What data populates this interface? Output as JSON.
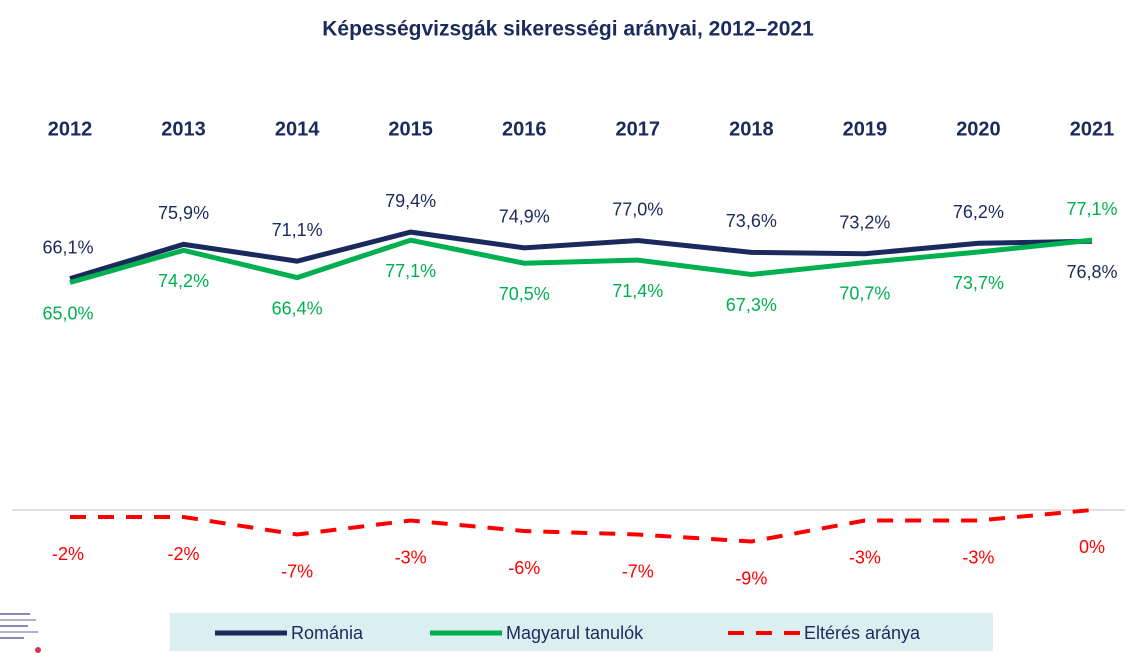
{
  "chart_data": {
    "type": "line",
    "title": "Képességvizsgák sikerességi arányai, 2012–2021",
    "categories": [
      "2012",
      "2013",
      "2014",
      "2015",
      "2016",
      "2017",
      "2018",
      "2019",
      "2020",
      "2021"
    ],
    "ylim": [
      -12,
      100
    ],
    "legend": "bottom",
    "series": [
      {
        "name": "Románia",
        "color": "#1b2a5c",
        "dash": false,
        "values": [
          66.1,
          75.9,
          71.1,
          79.4,
          74.9,
          77.0,
          73.6,
          73.2,
          76.2,
          76.8
        ],
        "value_labels": [
          "66,1%",
          "75,9%",
          "71,1%",
          "79,4%",
          "74,9%",
          "77,0%",
          "73,6%",
          "73,2%",
          "76,2%",
          "76,8%"
        ]
      },
      {
        "name": "Magyarul tanulók",
        "color": "#00b050",
        "dash": false,
        "values": [
          65.0,
          74.2,
          66.4,
          77.1,
          70.5,
          71.4,
          67.3,
          70.7,
          73.7,
          77.1
        ],
        "value_labels": [
          "65,0%",
          "74,2%",
          "66,4%",
          "77,1%",
          "70,5%",
          "71,4%",
          "67,3%",
          "70,7%",
          "73,7%",
          "77,1%"
        ]
      },
      {
        "name": "Eltérés aránya",
        "color": "#ff0000",
        "dash": true,
        "values": [
          -2,
          -2,
          -7,
          -3,
          -6,
          -7,
          -9,
          -3,
          -3,
          0
        ],
        "value_labels": [
          "-2%",
          "-2%",
          "-7%",
          "-3%",
          "-6%",
          "-7%",
          "-9%",
          "-3%",
          "-3%",
          "0%"
        ]
      }
    ]
  }
}
